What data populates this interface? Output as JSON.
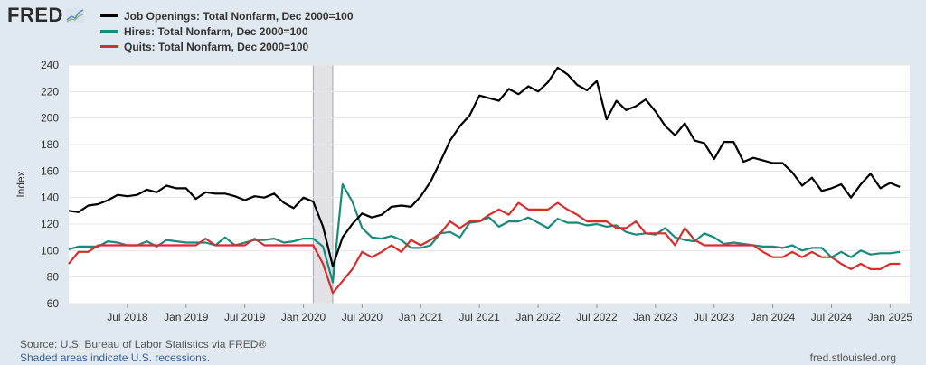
{
  "header": {
    "logo_text": "FRED",
    "logo_graph_icon": "trend-line-icon"
  },
  "legend": [
    {
      "label": "Job Openings: Total Nonfarm, Dec 2000=100",
      "color": "#000000"
    },
    {
      "label": "Hires: Total Nonfarm, Dec 2000=100",
      "color": "#1a8a7a"
    },
    {
      "label": "Quits: Total Nonfarm, Dec 2000=100",
      "color": "#d62d2d"
    }
  ],
  "chart_data": {
    "type": "line",
    "title": "",
    "xlabel": "",
    "ylabel": "Index",
    "ylim": [
      60,
      240
    ],
    "yticks": [
      60,
      80,
      100,
      120,
      140,
      160,
      180,
      200,
      220,
      240
    ],
    "xlim": [
      "2018-01",
      "2025-03"
    ],
    "xticks": [
      {
        "label": "Jul 2018",
        "date": "2018-07"
      },
      {
        "label": "Jan 2019",
        "date": "2019-01"
      },
      {
        "label": "Jul 2019",
        "date": "2019-07"
      },
      {
        "label": "Jan 2020",
        "date": "2020-01"
      },
      {
        "label": "Jul 2020",
        "date": "2020-07"
      },
      {
        "label": "Jan 2021",
        "date": "2021-01"
      },
      {
        "label": "Jul 2021",
        "date": "2021-07"
      },
      {
        "label": "Jan 2022",
        "date": "2022-01"
      },
      {
        "label": "Jul 2022",
        "date": "2022-07"
      },
      {
        "label": "Jan 2023",
        "date": "2023-01"
      },
      {
        "label": "Jul 2023",
        "date": "2023-07"
      },
      {
        "label": "Jan 2024",
        "date": "2024-01"
      },
      {
        "label": "Jul 2024",
        "date": "2024-07"
      },
      {
        "label": "Jan 2025",
        "date": "2025-01"
      }
    ],
    "recession": {
      "start": "2020-02",
      "end": "2020-04"
    },
    "grid": "horizontal",
    "series": [
      {
        "name": "Job Openings: Total Nonfarm, Dec 2000=100",
        "color": "#000000",
        "points": [
          [
            "2018-01",
            130
          ],
          [
            "2018-02",
            129
          ],
          [
            "2018-03",
            134
          ],
          [
            "2018-04",
            135
          ],
          [
            "2018-05",
            138
          ],
          [
            "2018-06",
            142
          ],
          [
            "2018-07",
            141
          ],
          [
            "2018-08",
            142
          ],
          [
            "2018-09",
            146
          ],
          [
            "2018-10",
            144
          ],
          [
            "2018-11",
            149
          ],
          [
            "2018-12",
            147
          ],
          [
            "2019-01",
            147
          ],
          [
            "2019-02",
            139
          ],
          [
            "2019-03",
            144
          ],
          [
            "2019-04",
            143
          ],
          [
            "2019-05",
            143
          ],
          [
            "2019-06",
            141
          ],
          [
            "2019-07",
            138
          ],
          [
            "2019-08",
            141
          ],
          [
            "2019-09",
            140
          ],
          [
            "2019-10",
            143
          ],
          [
            "2019-11",
            136
          ],
          [
            "2019-12",
            132
          ],
          [
            "2020-01",
            140
          ],
          [
            "2020-02",
            137
          ],
          [
            "2020-03",
            118
          ],
          [
            "2020-04",
            88
          ],
          [
            "2020-05",
            110
          ],
          [
            "2020-06",
            120
          ],
          [
            "2020-07",
            128
          ],
          [
            "2020-08",
            125
          ],
          [
            "2020-09",
            127
          ],
          [
            "2020-10",
            133
          ],
          [
            "2020-11",
            134
          ],
          [
            "2020-12",
            133
          ],
          [
            "2021-01",
            141
          ],
          [
            "2021-02",
            152
          ],
          [
            "2021-03",
            167
          ],
          [
            "2021-04",
            183
          ],
          [
            "2021-05",
            194
          ],
          [
            "2021-06",
            202
          ],
          [
            "2021-07",
            217
          ],
          [
            "2021-08",
            215
          ],
          [
            "2021-09",
            213
          ],
          [
            "2021-10",
            222
          ],
          [
            "2021-11",
            218
          ],
          [
            "2021-12",
            224
          ],
          [
            "2022-01",
            220
          ],
          [
            "2022-02",
            227
          ],
          [
            "2022-03",
            238
          ],
          [
            "2022-04",
            233
          ],
          [
            "2022-05",
            225
          ],
          [
            "2022-06",
            221
          ],
          [
            "2022-07",
            228
          ],
          [
            "2022-08",
            199
          ],
          [
            "2022-09",
            213
          ],
          [
            "2022-10",
            206
          ],
          [
            "2022-11",
            209
          ],
          [
            "2022-12",
            214
          ],
          [
            "2023-01",
            205
          ],
          [
            "2023-02",
            194
          ],
          [
            "2023-03",
            187
          ],
          [
            "2023-04",
            196
          ],
          [
            "2023-05",
            183
          ],
          [
            "2023-06",
            181
          ],
          [
            "2023-07",
            169
          ],
          [
            "2023-08",
            182
          ],
          [
            "2023-09",
            182
          ],
          [
            "2023-10",
            167
          ],
          [
            "2023-11",
            170
          ],
          [
            "2023-12",
            168
          ],
          [
            "2024-01",
            166
          ],
          [
            "2024-02",
            166
          ],
          [
            "2024-03",
            159
          ],
          [
            "2024-04",
            149
          ],
          [
            "2024-05",
            155
          ],
          [
            "2024-06",
            145
          ],
          [
            "2024-07",
            147
          ],
          [
            "2024-08",
            150
          ],
          [
            "2024-09",
            140
          ],
          [
            "2024-10",
            150
          ],
          [
            "2024-11",
            158
          ],
          [
            "2024-12",
            147
          ],
          [
            "2025-01",
            151
          ],
          [
            "2025-02",
            148
          ]
        ]
      },
      {
        "name": "Hires: Total Nonfarm, Dec 2000=100",
        "color": "#1a8a7a",
        "points": [
          [
            "2018-01",
            101
          ],
          [
            "2018-02",
            103
          ],
          [
            "2018-03",
            103
          ],
          [
            "2018-04",
            103
          ],
          [
            "2018-05",
            107
          ],
          [
            "2018-06",
            106
          ],
          [
            "2018-07",
            104
          ],
          [
            "2018-08",
            104
          ],
          [
            "2018-09",
            107
          ],
          [
            "2018-10",
            103
          ],
          [
            "2018-11",
            108
          ],
          [
            "2018-12",
            107
          ],
          [
            "2019-01",
            106
          ],
          [
            "2019-02",
            106
          ],
          [
            "2019-03",
            106
          ],
          [
            "2019-04",
            104
          ],
          [
            "2019-05",
            110
          ],
          [
            "2019-06",
            104
          ],
          [
            "2019-07",
            106
          ],
          [
            "2019-08",
            108
          ],
          [
            "2019-09",
            108
          ],
          [
            "2019-10",
            109
          ],
          [
            "2019-11",
            106
          ],
          [
            "2019-12",
            107
          ],
          [
            "2020-01",
            109
          ],
          [
            "2020-02",
            109
          ],
          [
            "2020-03",
            103
          ],
          [
            "2020-04",
            76
          ],
          [
            "2020-05",
            150
          ],
          [
            "2020-06",
            137
          ],
          [
            "2020-07",
            117
          ],
          [
            "2020-08",
            110
          ],
          [
            "2020-09",
            109
          ],
          [
            "2020-10",
            111
          ],
          [
            "2020-11",
            108
          ],
          [
            "2020-12",
            102
          ],
          [
            "2021-01",
            102
          ],
          [
            "2021-02",
            104
          ],
          [
            "2021-03",
            113
          ],
          [
            "2021-04",
            114
          ],
          [
            "2021-05",
            110
          ],
          [
            "2021-06",
            121
          ],
          [
            "2021-07",
            122
          ],
          [
            "2021-08",
            125
          ],
          [
            "2021-09",
            118
          ],
          [
            "2021-10",
            122
          ],
          [
            "2021-11",
            122
          ],
          [
            "2021-12",
            125
          ],
          [
            "2022-01",
            121
          ],
          [
            "2022-02",
            117
          ],
          [
            "2022-03",
            124
          ],
          [
            "2022-04",
            121
          ],
          [
            "2022-05",
            121
          ],
          [
            "2022-06",
            119
          ],
          [
            "2022-07",
            120
          ],
          [
            "2022-08",
            118
          ],
          [
            "2022-09",
            119
          ],
          [
            "2022-10",
            114
          ],
          [
            "2022-11",
            112
          ],
          [
            "2022-12",
            113
          ],
          [
            "2023-01",
            112
          ],
          [
            "2023-02",
            117
          ],
          [
            "2023-03",
            110
          ],
          [
            "2023-04",
            108
          ],
          [
            "2023-05",
            107
          ],
          [
            "2023-06",
            113
          ],
          [
            "2023-07",
            110
          ],
          [
            "2023-08",
            105
          ],
          [
            "2023-09",
            106
          ],
          [
            "2023-10",
            105
          ],
          [
            "2023-11",
            104
          ],
          [
            "2023-12",
            103
          ],
          [
            "2024-01",
            103
          ],
          [
            "2024-02",
            102
          ],
          [
            "2024-03",
            104
          ],
          [
            "2024-04",
            100
          ],
          [
            "2024-05",
            102
          ],
          [
            "2024-06",
            102
          ],
          [
            "2024-07",
            95
          ],
          [
            "2024-08",
            99
          ],
          [
            "2024-09",
            95
          ],
          [
            "2024-10",
            100
          ],
          [
            "2024-11",
            97
          ],
          [
            "2024-12",
            98
          ],
          [
            "2025-01",
            98
          ],
          [
            "2025-02",
            99
          ]
        ]
      },
      {
        "name": "Quits: Total Nonfarm, Dec 2000=100",
        "color": "#d62d2d",
        "points": [
          [
            "2018-01",
            90
          ],
          [
            "2018-02",
            99
          ],
          [
            "2018-03",
            99
          ],
          [
            "2018-04",
            104
          ],
          [
            "2018-05",
            104
          ],
          [
            "2018-06",
            104
          ],
          [
            "2018-07",
            104
          ],
          [
            "2018-08",
            104
          ],
          [
            "2018-09",
            104
          ],
          [
            "2018-10",
            104
          ],
          [
            "2018-11",
            104
          ],
          [
            "2018-12",
            104
          ],
          [
            "2019-01",
            104
          ],
          [
            "2019-02",
            104
          ],
          [
            "2019-03",
            109
          ],
          [
            "2019-04",
            104
          ],
          [
            "2019-05",
            104
          ],
          [
            "2019-06",
            104
          ],
          [
            "2019-07",
            104
          ],
          [
            "2019-08",
            109
          ],
          [
            "2019-09",
            104
          ],
          [
            "2019-10",
            104
          ],
          [
            "2019-11",
            104
          ],
          [
            "2019-12",
            104
          ],
          [
            "2020-01",
            104
          ],
          [
            "2020-02",
            104
          ],
          [
            "2020-03",
            90
          ],
          [
            "2020-04",
            68
          ],
          [
            "2020-05",
            77
          ],
          [
            "2020-06",
            86
          ],
          [
            "2020-07",
            99
          ],
          [
            "2020-08",
            95
          ],
          [
            "2020-09",
            99
          ],
          [
            "2020-10",
            104
          ],
          [
            "2020-11",
            99
          ],
          [
            "2020-12",
            108
          ],
          [
            "2021-01",
            104
          ],
          [
            "2021-02",
            108
          ],
          [
            "2021-03",
            113
          ],
          [
            "2021-04",
            122
          ],
          [
            "2021-05",
            117
          ],
          [
            "2021-06",
            122
          ],
          [
            "2021-07",
            122
          ],
          [
            "2021-08",
            127
          ],
          [
            "2021-09",
            131
          ],
          [
            "2021-10",
            127
          ],
          [
            "2021-11",
            136
          ],
          [
            "2021-12",
            131
          ],
          [
            "2022-01",
            131
          ],
          [
            "2022-02",
            131
          ],
          [
            "2022-03",
            136
          ],
          [
            "2022-04",
            131
          ],
          [
            "2022-05",
            127
          ],
          [
            "2022-06",
            122
          ],
          [
            "2022-07",
            122
          ],
          [
            "2022-08",
            122
          ],
          [
            "2022-09",
            117
          ],
          [
            "2022-10",
            117
          ],
          [
            "2022-11",
            122
          ],
          [
            "2022-12",
            113
          ],
          [
            "2023-01",
            113
          ],
          [
            "2023-02",
            113
          ],
          [
            "2023-03",
            104
          ],
          [
            "2023-04",
            117
          ],
          [
            "2023-05",
            108
          ],
          [
            "2023-06",
            104
          ],
          [
            "2023-07",
            104
          ],
          [
            "2023-08",
            104
          ],
          [
            "2023-09",
            104
          ],
          [
            "2023-10",
            104
          ],
          [
            "2023-11",
            104
          ],
          [
            "2023-12",
            99
          ],
          [
            "2024-01",
            95
          ],
          [
            "2024-02",
            95
          ],
          [
            "2024-03",
            99
          ],
          [
            "2024-04",
            95
          ],
          [
            "2024-05",
            99
          ],
          [
            "2024-06",
            95
          ],
          [
            "2024-07",
            95
          ],
          [
            "2024-08",
            90
          ],
          [
            "2024-09",
            86
          ],
          [
            "2024-10",
            90
          ],
          [
            "2024-11",
            86
          ],
          [
            "2024-12",
            86
          ],
          [
            "2025-01",
            90
          ],
          [
            "2025-02",
            90
          ]
        ]
      }
    ]
  },
  "footer": {
    "source": "Source: U.S. Bureau of Labor Statistics via FRED®",
    "recession_note": "Shaded areas indicate U.S. recessions.",
    "site": "fred.stlouisfed.org"
  }
}
